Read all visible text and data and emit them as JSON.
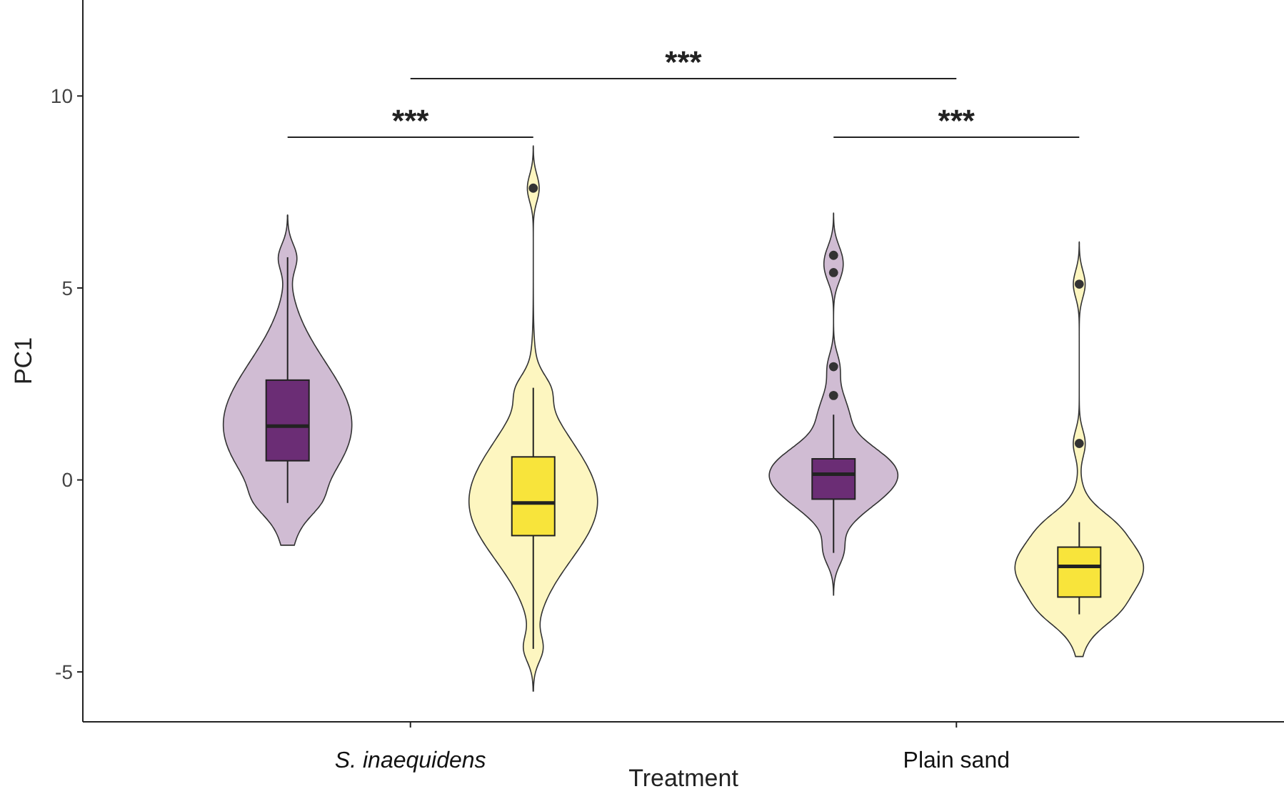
{
  "chart_data": {
    "type": "box",
    "xlabel": "Treatment",
    "ylabel": "PC1",
    "categories": [
      "S. inaequidens",
      "Plain sand"
    ],
    "ylim": [
      -6.3,
      12.5
    ],
    "yticks": [
      -5,
      0,
      5,
      10
    ],
    "grid": false,
    "annotations": [
      "***",
      "***",
      "***"
    ],
    "series": [
      {
        "color": "#6b2d75",
        "boxes": [
          {
            "low": -0.6,
            "q1": 0.5,
            "median": 1.4,
            "q3": 2.6,
            "high": 5.8
          },
          {
            "low": -1.9,
            "q1": -0.5,
            "median": 0.15,
            "q3": 0.55,
            "high": 1.7,
            "outliers": [
              5.85,
              5.4,
              2.95,
              2.2
            ]
          }
        ]
      },
      {
        "color": "#f8e43b",
        "boxes": [
          {
            "low": -4.4,
            "q1": -1.45,
            "median": -0.6,
            "q3": 0.6,
            "high": 2.4,
            "outliers": [
              7.6
            ]
          },
          {
            "low": -3.5,
            "q1": -3.05,
            "median": -2.25,
            "q3": -1.75,
            "high": -1.1,
            "outliers": [
              5.1,
              0.95
            ]
          }
        ]
      }
    ]
  }
}
